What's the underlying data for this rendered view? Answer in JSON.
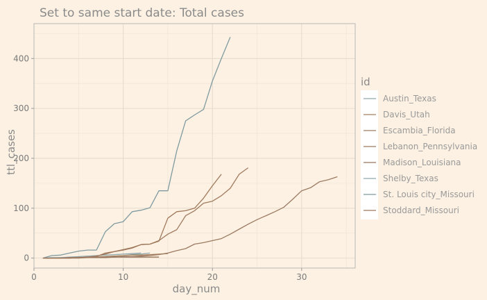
{
  "chart_data": {
    "type": "line",
    "title": "Set to same start date: Total cases",
    "xlabel": "day_num",
    "ylabel": "ttl_cases",
    "xlim": [
      0,
      36
    ],
    "ylim": [
      -20,
      470
    ],
    "x_ticks": [
      0,
      10,
      20,
      30
    ],
    "y_ticks": [
      0,
      100,
      200,
      300,
      400
    ],
    "grid": true,
    "legend_title": "id",
    "legend_position": "right",
    "colors": {
      "teal": "#7f9aa0",
      "brown": "#a07a5f",
      "background": "#fcf1e2",
      "panel_border": "#b8b8b8"
    },
    "series": [
      {
        "name": "Austin_Texas",
        "color": "#8fa7ab",
        "x": [
          1,
          2,
          3,
          4,
          5,
          6,
          7,
          8,
          9,
          10,
          11,
          12,
          13
        ],
        "y": [
          0,
          0,
          1,
          1,
          1,
          2,
          2,
          3,
          4,
          5,
          7,
          8,
          10
        ]
      },
      {
        "name": "Davis_Utah",
        "color": "#a5805f",
        "x": [
          1,
          2,
          3,
          4,
          5,
          6,
          7,
          8,
          9,
          10,
          11,
          12,
          13,
          14,
          15
        ],
        "y": [
          0,
          0,
          0,
          0,
          1,
          1,
          2,
          3,
          4,
          5,
          6,
          6,
          7,
          8,
          9
        ]
      },
      {
        "name": "Escambia_Florida",
        "color": "#a07a5f",
        "x": [
          1,
          2,
          3,
          4,
          5,
          6,
          7,
          8,
          9,
          10,
          11,
          12,
          13,
          14,
          15,
          16,
          17,
          18,
          19,
          20,
          21,
          22,
          23,
          24
        ],
        "y": [
          0,
          0,
          0,
          1,
          1,
          2,
          3,
          10,
          13,
          16,
          20,
          27,
          28,
          35,
          48,
          57,
          85,
          95,
          110,
          114,
          125,
          140,
          168,
          181
        ]
      },
      {
        "name": "Lebanon_Pennsylvania",
        "color": "#9c7a62",
        "x": [
          1,
          2,
          3,
          4,
          5,
          6,
          7,
          8,
          9,
          10,
          11,
          12,
          13,
          14,
          15,
          16,
          17,
          18,
          19,
          20,
          21,
          22,
          23,
          24,
          25,
          26,
          27,
          28,
          29,
          30,
          31,
          32,
          33,
          34
        ],
        "y": [
          0,
          0,
          0,
          0,
          1,
          1,
          1,
          2,
          2,
          3,
          3,
          4,
          5,
          7,
          10,
          15,
          19,
          28,
          31,
          35,
          39,
          48,
          58,
          68,
          77,
          85,
          93,
          102,
          118,
          135,
          141,
          153,
          157,
          163
        ]
      },
      {
        "name": "Madison_Louisiana",
        "color": "#98745c",
        "x": [
          1,
          2,
          3,
          4,
          5,
          6,
          7,
          8,
          9,
          10,
          11,
          12,
          13,
          14
        ],
        "y": [
          0,
          0,
          0,
          0,
          0,
          1,
          1,
          1,
          2,
          2,
          2,
          2,
          2,
          2
        ]
      },
      {
        "name": "Shelby_Texas",
        "color": "#8fa7ab",
        "x": [
          1,
          2,
          3,
          4,
          5,
          6,
          7,
          8,
          9,
          10,
          11,
          12
        ],
        "y": [
          0,
          1,
          1,
          2,
          3,
          4,
          5,
          6,
          7,
          8,
          9,
          10
        ]
      },
      {
        "name": "St. Louis city_Missouri",
        "color": "#7f9aa0",
        "x": [
          1,
          2,
          3,
          4,
          5,
          6,
          7,
          8,
          9,
          10,
          11,
          12,
          13,
          14,
          15,
          16,
          17,
          18,
          19,
          20,
          21,
          22
        ],
        "y": [
          0,
          5,
          6,
          10,
          14,
          16,
          16,
          53,
          69,
          73,
          93,
          96,
          101,
          135,
          135,
          215,
          275,
          287,
          298,
          355,
          400,
          443
        ]
      },
      {
        "name": "Stoddard_Missouri",
        "color": "#a0785c",
        "x": [
          1,
          2,
          3,
          4,
          5,
          6,
          7,
          8,
          9,
          10,
          11,
          12,
          13,
          14,
          15,
          16,
          17,
          18,
          19,
          20,
          21
        ],
        "y": [
          0,
          0,
          0,
          1,
          1,
          2,
          4,
          8,
          13,
          17,
          21,
          27,
          28,
          34,
          80,
          93,
          95,
          100,
          120,
          145,
          168
        ]
      }
    ]
  }
}
